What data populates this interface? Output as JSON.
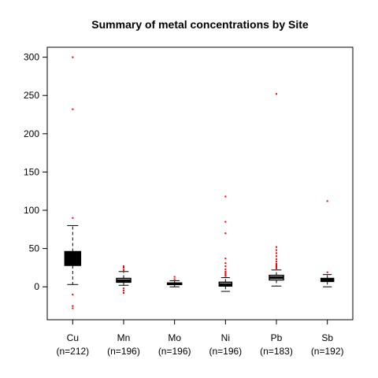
{
  "chart_data": {
    "type": "box",
    "title": "Summary of metal concentrations by Site",
    "xlabel": "",
    "ylabel": "",
    "ylim": [
      -43,
      313
    ],
    "yticks": [
      0,
      50,
      100,
      150,
      200,
      250,
      300
    ],
    "grid": false,
    "colors": {
      "box": "#000000",
      "outlier": "#ff0000",
      "axis": "#000000"
    },
    "groups": [
      {
        "name": "Cu",
        "n_label": "(n=212)",
        "whisker_low": 3,
        "q1": 28,
        "median": 38,
        "q3": 46,
        "whisker_high": 80,
        "box_fill": "#000000",
        "outliers": [
          -10,
          -25,
          -28,
          90,
          232,
          300
        ]
      },
      {
        "name": "Mn",
        "n_label": "(n=196)",
        "whisker_low": 2,
        "q1": 6,
        "median": 8,
        "q3": 11,
        "whisker_high": 20,
        "box_fill": "#ffffff",
        "outliers": [
          -8,
          -5,
          -2,
          22,
          25,
          27
        ]
      },
      {
        "name": "Mo",
        "n_label": "(n=196)",
        "whisker_low": 0,
        "q1": 3,
        "median": 4,
        "q3": 5,
        "whisker_high": 8,
        "box_fill": "#ffffff",
        "outliers": [
          10,
          13
        ]
      },
      {
        "name": "Ni",
        "n_label": "(n=196)",
        "whisker_low": -6,
        "q1": 1,
        "median": 3,
        "q3": 6,
        "whisker_high": 12,
        "box_fill": "#ffffff",
        "outliers": [
          14,
          16,
          18,
          20,
          23,
          27,
          31,
          37,
          70,
          85,
          118
        ]
      },
      {
        "name": "Pb",
        "n_label": "(n=183)",
        "whisker_low": 1,
        "q1": 9,
        "median": 12,
        "q3": 15,
        "whisker_high": 22,
        "box_fill": "#ffffff",
        "outliers": [
          24,
          26,
          28,
          30,
          33,
          36,
          40,
          44,
          48,
          52,
          252
        ]
      },
      {
        "name": "Sb",
        "n_label": "(n=192)",
        "whisker_low": 0,
        "q1": 7,
        "median": 9,
        "q3": 11,
        "whisker_high": 16,
        "box_fill": "#ffffff",
        "outliers": [
          19,
          112
        ]
      }
    ]
  }
}
